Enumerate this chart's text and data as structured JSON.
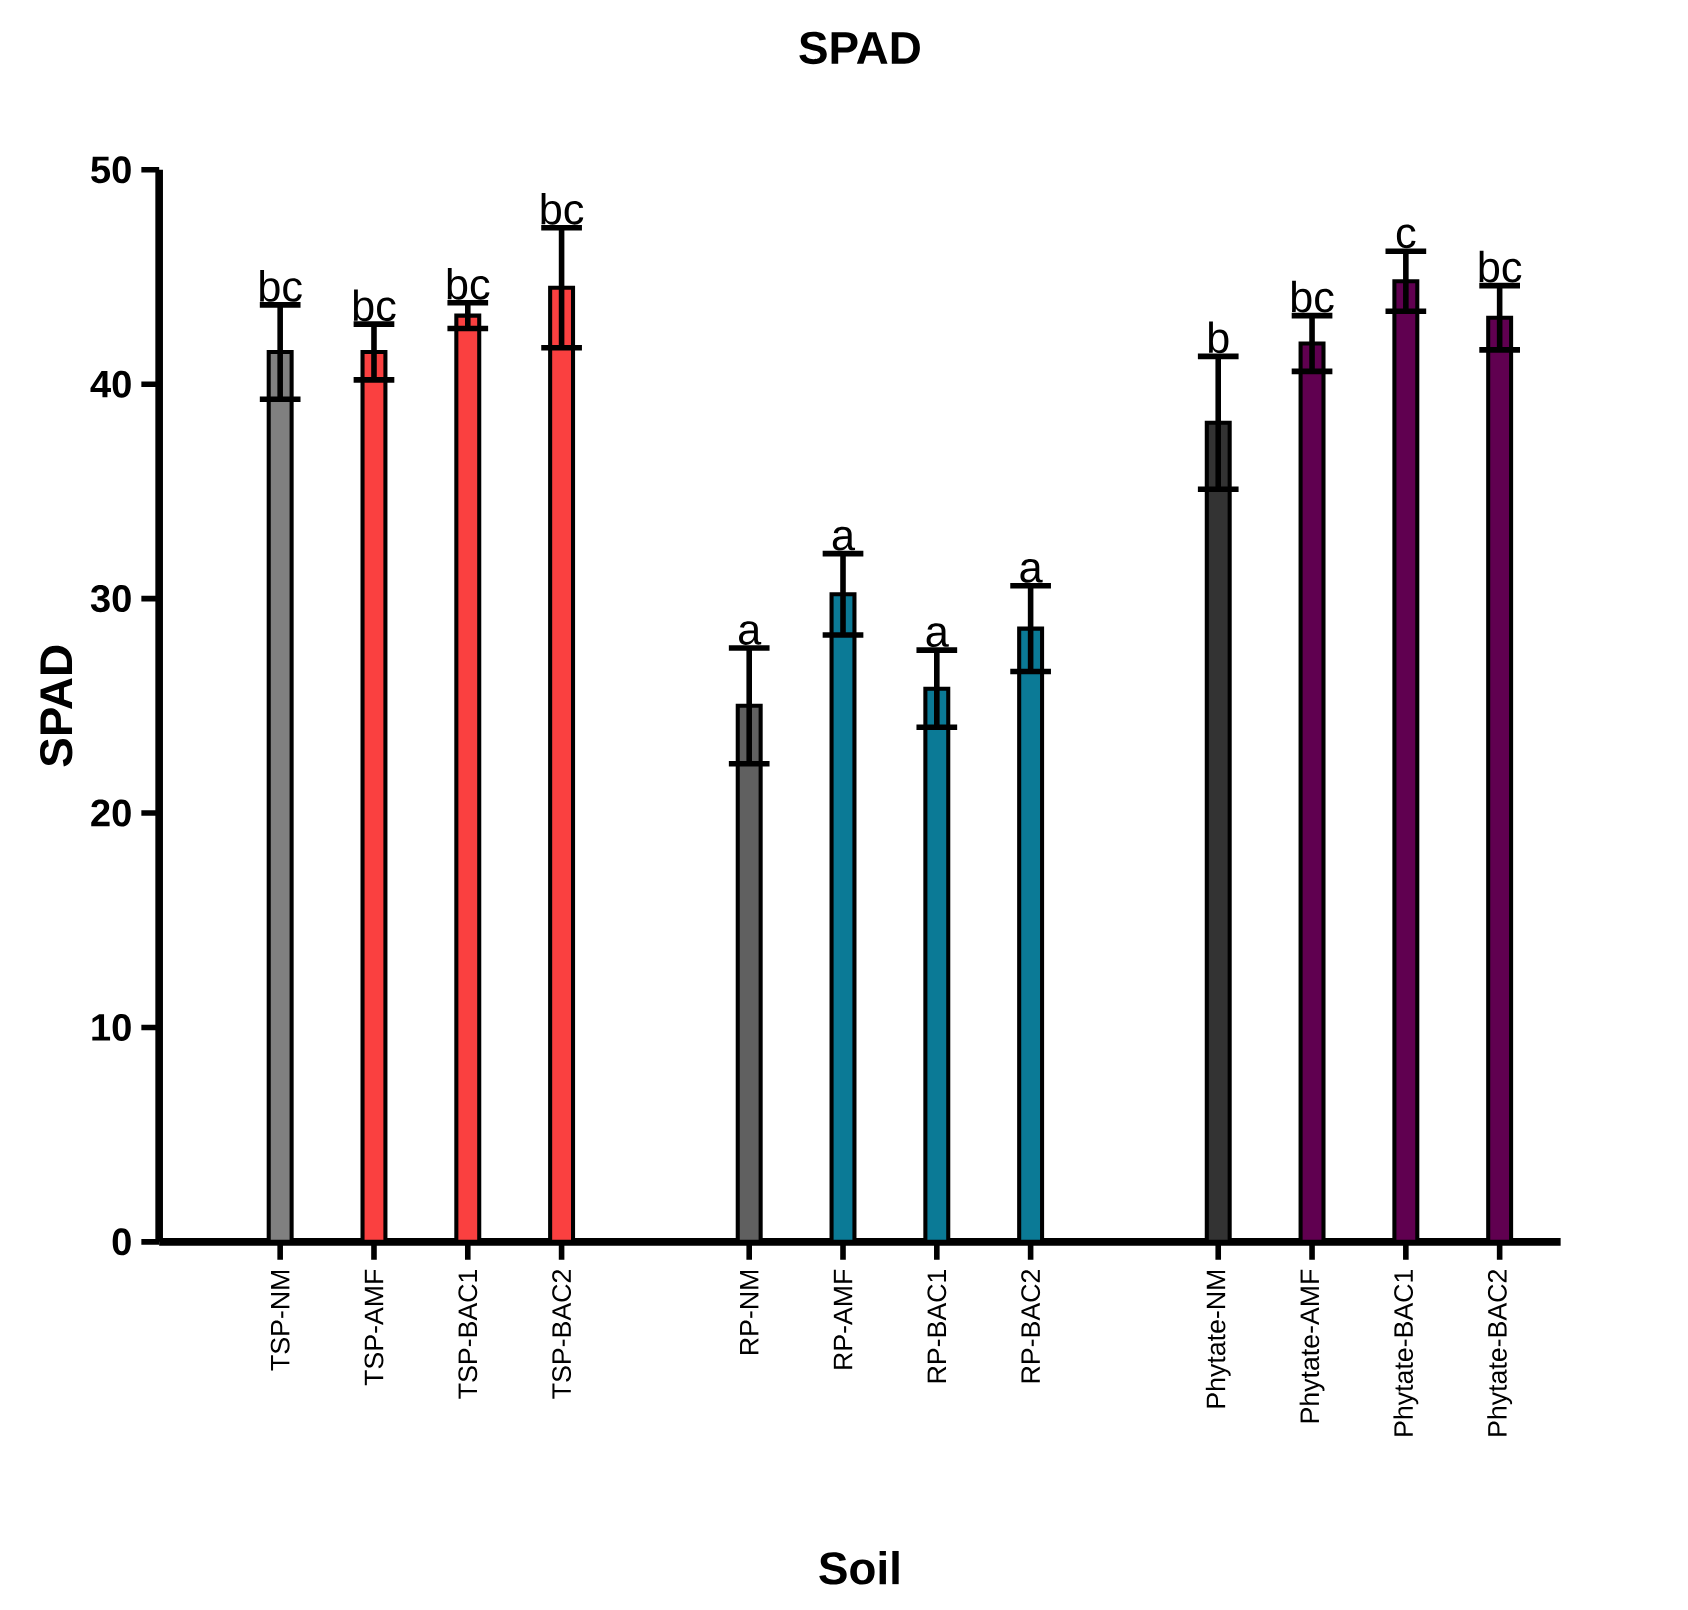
{
  "chart_data": {
    "type": "bar",
    "title": "SPAD",
    "xlabel": "Soil",
    "ylabel": "SPAD",
    "categories": [
      "TSP-NM",
      "TSP-AMF",
      "TSP-BAC1",
      "TSP-BAC2",
      null,
      "RP-NM",
      "RP-AMF",
      "RP-BAC1",
      "RP-BAC2",
      null,
      "Phytate-NM",
      "Phytate-AMF",
      "Phytate-BAC1",
      "Phytate-BAC2"
    ],
    "values": [
      41.5,
      41.5,
      43.2,
      44.5,
      null,
      25.0,
      30.2,
      25.8,
      28.6,
      null,
      38.2,
      41.9,
      44.8,
      43.1
    ],
    "errors": [
      2.2,
      1.3,
      0.6,
      2.8,
      null,
      2.7,
      1.9,
      1.8,
      2.0,
      null,
      3.1,
      1.3,
      1.4,
      1.5
    ],
    "value_labels": [
      "bc",
      "bc",
      "bc",
      "bc",
      null,
      "a",
      "a",
      "a",
      "a",
      null,
      "b",
      "bc",
      "c",
      "bc"
    ],
    "colors": [
      "#808080",
      "#fa4040",
      "#fa4040",
      "#fa4040",
      "#ffffff",
      "#606060",
      "#0b7a96",
      "#0b7a96",
      "#0b7a96",
      "#ffffff",
      "#333333",
      "#600050",
      "#600050",
      "#600050"
    ],
    "ylim": [
      0,
      50
    ],
    "yticks": [
      0,
      10,
      20,
      30,
      40,
      50
    ],
    "grid": false
  }
}
